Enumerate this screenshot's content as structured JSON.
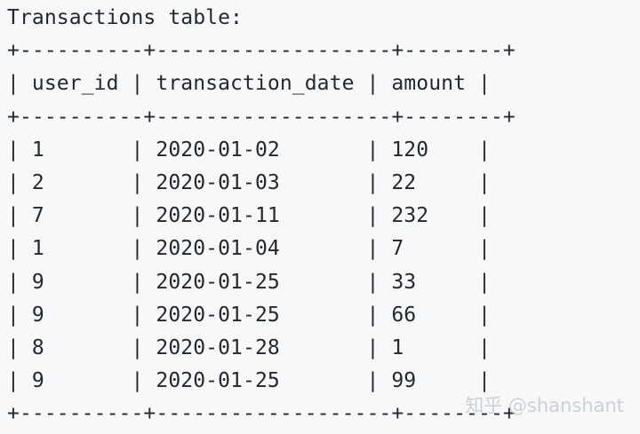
{
  "title": "Transactions table:",
  "separator": "+----------+-------------------+--------+",
  "header_row": "| user_id | transaction_date | amount |",
  "columns": [
    "user_id",
    "transaction_date",
    "amount"
  ],
  "rows": [
    {
      "user_id": "1",
      "transaction_date": "2020-01-02",
      "amount": "120",
      "text": "| 1       | 2020-01-02       | 120    |"
    },
    {
      "user_id": "2",
      "transaction_date": "2020-01-03",
      "amount": "22",
      "text": "| 2       | 2020-01-03       | 22     |"
    },
    {
      "user_id": "7",
      "transaction_date": "2020-01-11",
      "amount": "232",
      "text": "| 7       | 2020-01-11       | 232    |"
    },
    {
      "user_id": "1",
      "transaction_date": "2020-01-04",
      "amount": "7",
      "text": "| 1       | 2020-01-04       | 7      |"
    },
    {
      "user_id": "9",
      "transaction_date": "2020-01-25",
      "amount": "33",
      "text": "| 9       | 2020-01-25       | 33     |"
    },
    {
      "user_id": "9",
      "transaction_date": "2020-01-25",
      "amount": "66",
      "text": "| 9       | 2020-01-25       | 66     |"
    },
    {
      "user_id": "8",
      "transaction_date": "2020-01-28",
      "amount": "1",
      "text": "| 8       | 2020-01-28       | 1      |"
    },
    {
      "user_id": "9",
      "transaction_date": "2020-01-25",
      "amount": "99",
      "text": "| 9       | 2020-01-25       | 99     |"
    }
  ],
  "watermark": "知乎 @shanshant"
}
